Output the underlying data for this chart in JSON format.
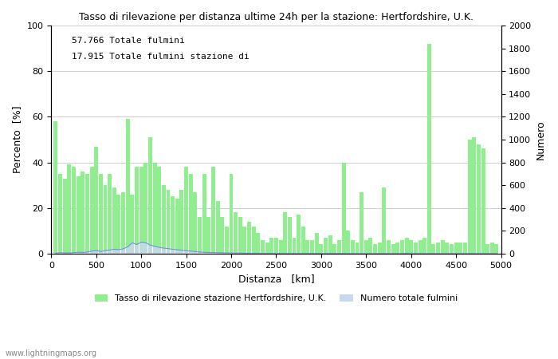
{
  "title": "Tasso di rilevazione per distanza ultime 24h per la stazione: Hertfordshire, U.K.",
  "xlabel": "Distanza   [km]",
  "ylabel_left": "Percento  [%]",
  "ylabel_right": "Numero",
  "annotation_line1": "57.766 Totale fulmini",
  "annotation_line2": "17.915 Totale fulmini stazione di",
  "xlim": [
    0,
    5000
  ],
  "ylim_left": [
    0,
    100
  ],
  "ylim_right": [
    0,
    2000
  ],
  "xticks": [
    0,
    500,
    1000,
    1500,
    2000,
    2500,
    3000,
    3500,
    4000,
    4500,
    5000
  ],
  "yticks_left": [
    0,
    20,
    40,
    60,
    80,
    100
  ],
  "yticks_right": [
    0,
    200,
    400,
    600,
    800,
    1000,
    1200,
    1400,
    1600,
    1800,
    2000
  ],
  "legend_label_green": "Tasso di rilevazione stazione Hertfordshire, U.K.",
  "legend_label_blue": "Numero totale fulmini",
  "bar_color_green": "#90ee90",
  "bar_color_blue": "#c8d8f0",
  "line_color_blue": "#6699cc",
  "watermark": "www.lightningmaps.org",
  "distances": [
    50,
    100,
    150,
    200,
    250,
    300,
    350,
    400,
    450,
    500,
    550,
    600,
    650,
    700,
    750,
    800,
    850,
    900,
    950,
    1000,
    1050,
    1100,
    1150,
    1200,
    1250,
    1300,
    1350,
    1400,
    1450,
    1500,
    1550,
    1600,
    1650,
    1700,
    1750,
    1800,
    1850,
    1900,
    1950,
    2000,
    2050,
    2100,
    2150,
    2200,
    2250,
    2300,
    2350,
    2400,
    2450,
    2500,
    2550,
    2600,
    2650,
    2700,
    2750,
    2800,
    2850,
    2900,
    2950,
    3000,
    3050,
    3100,
    3150,
    3200,
    3250,
    3300,
    3350,
    3400,
    3450,
    3500,
    3550,
    3600,
    3650,
    3700,
    3750,
    3800,
    3850,
    3900,
    3950,
    4000,
    4050,
    4100,
    4150,
    4200,
    4250,
    4300,
    4350,
    4400,
    4450,
    4500,
    4550,
    4600,
    4650,
    4700,
    4750,
    4800,
    4850,
    4900,
    4950
  ],
  "green_pct": [
    58,
    35,
    33,
    39,
    38,
    34,
    36,
    35,
    38,
    47,
    35,
    30,
    35,
    29,
    26,
    27,
    59,
    26,
    38,
    38,
    40,
    51,
    40,
    38,
    30,
    28,
    25,
    24,
    28,
    38,
    35,
    27,
    16,
    35,
    16,
    38,
    23,
    16,
    12,
    35,
    18,
    16,
    12,
    14,
    12,
    9,
    6,
    5,
    7,
    7,
    6,
    18,
    16,
    7,
    17,
    12,
    6,
    6,
    9,
    4,
    7,
    8,
    4,
    6,
    40,
    10,
    6,
    5,
    27,
    6,
    7,
    4,
    5,
    29,
    6,
    4,
    5,
    6,
    7,
    6,
    5,
    6,
    7,
    92,
    4,
    5,
    6,
    5,
    4,
    5,
    5,
    5,
    50,
    51,
    48,
    46,
    4,
    5,
    4
  ],
  "blue_cnt": [
    4,
    8,
    6,
    7,
    8,
    12,
    10,
    14,
    22,
    28,
    18,
    26,
    32,
    38,
    35,
    42,
    60,
    95,
    80,
    100,
    95,
    75,
    65,
    55,
    48,
    44,
    38,
    34,
    30,
    26,
    22,
    18,
    14,
    12,
    10,
    9,
    8,
    7,
    6,
    5,
    5,
    4,
    4,
    3,
    3,
    3,
    2,
    2,
    2,
    1,
    1,
    1,
    1,
    1,
    1,
    1,
    1,
    1,
    1,
    1,
    1,
    1,
    1,
    1,
    1,
    0,
    0,
    0,
    0,
    0,
    0,
    0,
    0,
    0,
    0,
    0,
    0,
    0,
    4,
    0,
    0,
    0,
    0,
    0,
    0,
    0,
    0,
    0,
    0,
    0,
    0,
    0,
    0,
    0,
    0,
    0,
    0,
    0,
    0
  ]
}
